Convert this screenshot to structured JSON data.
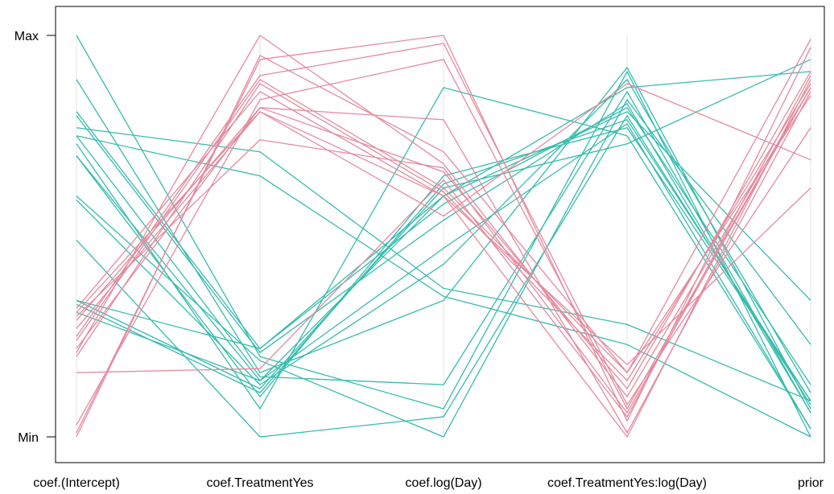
{
  "chart_data": {
    "type": "parallel-coordinates",
    "title": "",
    "xlabel": "",
    "ylabel": "",
    "y_tick_labels": [
      "Max",
      "Min"
    ],
    "ylim": [
      0,
      1
    ],
    "grid": false,
    "legend": "none",
    "categories": [
      "coef.(Intercept)",
      "coef.TreatmentYes",
      "coef.log(Day)",
      "coef.TreatmentYes:log(Day)",
      "prior"
    ],
    "colors": {
      "group_a": "#e58a9e",
      "group_b": "#35bcad",
      "axis_guides": "#e3e3e3"
    },
    "series": [
      {
        "group": "b",
        "values": [
          1.0,
          0.2,
          0.07,
          0.91,
          0.0
        ]
      },
      {
        "group": "b",
        "values": [
          0.89,
          0.16,
          0.34,
          0.92,
          0.07
        ]
      },
      {
        "group": "b",
        "values": [
          0.81,
          0.22,
          0.58,
          0.82,
          0.13
        ]
      },
      {
        "group": "b",
        "values": [
          0.8,
          0.21,
          0.54,
          0.83,
          0.06
        ]
      },
      {
        "group": "b",
        "values": [
          0.77,
          0.71,
          0.37,
          0.28,
          0.09
        ]
      },
      {
        "group": "b",
        "values": [
          0.75,
          0.65,
          0.35,
          0.23,
          0.0
        ]
      },
      {
        "group": "b",
        "values": [
          0.75,
          0.15,
          0.13,
          0.86,
          0.06
        ]
      },
      {
        "group": "b",
        "values": [
          0.73,
          0.07,
          0.87,
          0.75,
          0.02
        ]
      },
      {
        "group": "b",
        "values": [
          0.7,
          0.1,
          0.65,
          0.77,
          0.09
        ]
      },
      {
        "group": "b",
        "values": [
          0.7,
          0.14,
          0.47,
          0.78,
          0.02
        ]
      },
      {
        "group": "b",
        "values": [
          0.6,
          0.19,
          0.0,
          0.84,
          0.23
        ]
      },
      {
        "group": "b",
        "values": [
          0.59,
          0.13,
          0.43,
          0.89,
          0.11
        ]
      },
      {
        "group": "b",
        "values": [
          0.49,
          0.0,
          0.05,
          0.8,
          0.08
        ]
      },
      {
        "group": "b",
        "values": [
          0.34,
          0.12,
          0.62,
          0.73,
          0.94
        ]
      },
      {
        "group": "b",
        "values": [
          0.34,
          0.22,
          0.6,
          0.81,
          0.34
        ]
      },
      {
        "group": "b",
        "values": [
          0.33,
          0.11,
          0.63,
          0.79,
          0.09
        ]
      },
      {
        "group": "b",
        "values": [
          0.31,
          0.14,
          0.6,
          0.87,
          0.91
        ]
      },
      {
        "group": "a",
        "values": [
          0.0,
          0.95,
          0.71,
          0.16,
          0.99
        ]
      },
      {
        "group": "a",
        "values": [
          0.01,
          0.94,
          1.0,
          0.04,
          0.97
        ]
      },
      {
        "group": "a",
        "values": [
          0.03,
          0.84,
          0.94,
          0.07,
          0.87
        ]
      },
      {
        "group": "a",
        "values": [
          0.16,
          0.17,
          0.64,
          0.05,
          0.9
        ]
      },
      {
        "group": "a",
        "values": [
          0.2,
          0.88,
          0.61,
          0.14,
          0.88
        ]
      },
      {
        "group": "a",
        "values": [
          0.21,
          1.0,
          0.68,
          0.1,
          0.87
        ]
      },
      {
        "group": "a",
        "values": [
          0.22,
          0.82,
          0.66,
          0.12,
          0.91
        ]
      },
      {
        "group": "a",
        "values": [
          0.24,
          0.89,
          0.62,
          0.16,
          0.85
        ]
      },
      {
        "group": "a",
        "values": [
          0.25,
          0.9,
          0.98,
          0.08,
          0.77
        ]
      },
      {
        "group": "a",
        "values": [
          0.27,
          0.81,
          0.6,
          0.18,
          0.62
        ]
      },
      {
        "group": "a",
        "values": [
          0.29,
          0.82,
          0.79,
          0.01,
          0.86
        ]
      },
      {
        "group": "a",
        "values": [
          0.31,
          0.81,
          0.55,
          0.88,
          0.69
        ]
      },
      {
        "group": "a",
        "values": [
          0.3,
          0.74,
          0.67,
          0.06,
          0.87
        ]
      },
      {
        "group": "a",
        "values": [
          0.32,
          0.86,
          0.6,
          0.0,
          0.89
        ]
      }
    ]
  }
}
